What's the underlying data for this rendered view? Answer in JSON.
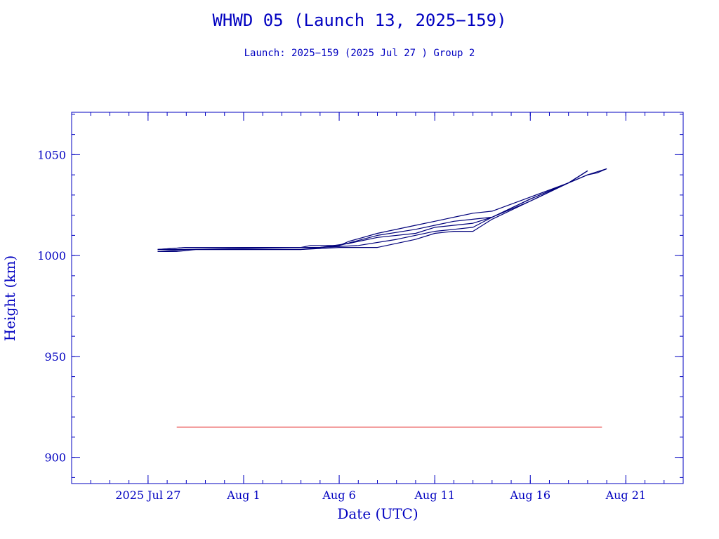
{
  "chart_data": {
    "type": "line",
    "title": "WHWD 05 (Launch 13, 2025−159)",
    "subtitle": "Launch: 2025−159  (2025 Jul 27 )  Group 2",
    "xlabel": "Date (UTC)",
    "ylabel": "Height (km)",
    "x_ticks": [
      {
        "date": "2025-07-27",
        "label": "2025 Jul 27"
      },
      {
        "date": "2025-08-01",
        "label": "Aug  1"
      },
      {
        "date": "2025-08-06",
        "label": "Aug  6"
      },
      {
        "date": "2025-08-11",
        "label": "Aug 11"
      },
      {
        "date": "2025-08-16",
        "label": "Aug 16"
      },
      {
        "date": "2025-08-21",
        "label": "Aug 21"
      }
    ],
    "xlim": [
      "2025-07-23",
      "2025-08-24"
    ],
    "ylim": [
      887,
      1071
    ],
    "y_ticks": [
      900,
      950,
      1000,
      1050
    ],
    "grid": false,
    "line_color": "#00007a",
    "reference_color": "#e00000",
    "axis_color": "#0000c0",
    "series": [
      {
        "points": [
          [
            "2025-07-27T12:00",
            1002
          ],
          [
            "2025-07-28T12:00",
            1002
          ],
          [
            "2025-07-29T12:00",
            1003
          ],
          [
            "2025-08-04",
            1003
          ],
          [
            "2025-08-06",
            1004
          ],
          [
            "2025-08-08",
            1004
          ],
          [
            "2025-08-10",
            1008
          ],
          [
            "2025-08-11",
            1011
          ],
          [
            "2025-08-12",
            1012
          ],
          [
            "2025-08-13",
            1012
          ],
          [
            "2025-08-14",
            1018
          ],
          [
            "2025-08-16",
            1027
          ],
          [
            "2025-08-18",
            1036
          ],
          [
            "2025-08-19",
            1042
          ]
        ]
      },
      {
        "points": [
          [
            "2025-07-27T12:00",
            1002
          ],
          [
            "2025-07-29",
            1003
          ],
          [
            "2025-08-04",
            1003
          ],
          [
            "2025-08-05",
            1004
          ],
          [
            "2025-08-07",
            1005
          ],
          [
            "2025-08-09",
            1008
          ],
          [
            "2025-08-11",
            1012
          ],
          [
            "2025-08-12",
            1013
          ],
          [
            "2025-08-13",
            1014
          ],
          [
            "2025-08-14",
            1019
          ],
          [
            "2025-08-16",
            1027
          ],
          [
            "2025-08-18",
            1036
          ],
          [
            "2025-08-19",
            1042
          ]
        ]
      },
      {
        "points": [
          [
            "2025-07-27T12:00",
            1003
          ],
          [
            "2025-07-29",
            1003
          ],
          [
            "2025-08-04",
            1004
          ],
          [
            "2025-08-05",
            1004
          ],
          [
            "2025-08-06T12:00",
            1006
          ],
          [
            "2025-08-08",
            1009
          ],
          [
            "2025-08-10",
            1011
          ],
          [
            "2025-08-11",
            1014
          ],
          [
            "2025-08-12",
            1015
          ],
          [
            "2025-08-13",
            1016
          ],
          [
            "2025-08-14",
            1019
          ],
          [
            "2025-08-16",
            1028
          ],
          [
            "2025-08-18",
            1036
          ],
          [
            "2025-08-19",
            1042
          ]
        ]
      },
      {
        "points": [
          [
            "2025-07-27T12:00",
            1003
          ],
          [
            "2025-07-29",
            1004
          ],
          [
            "2025-08-04",
            1004
          ],
          [
            "2025-08-05",
            1004
          ],
          [
            "2025-08-06",
            1005
          ],
          [
            "2025-08-08",
            1010
          ],
          [
            "2025-08-10",
            1013
          ],
          [
            "2025-08-11",
            1015
          ],
          [
            "2025-08-12",
            1017
          ],
          [
            "2025-08-13",
            1018
          ],
          [
            "2025-08-14",
            1019
          ],
          [
            "2025-08-16",
            1028
          ],
          [
            "2025-08-18",
            1036
          ],
          [
            "2025-08-19",
            1040
          ],
          [
            "2025-08-20",
            1043
          ]
        ]
      },
      {
        "points": [
          [
            "2025-07-27T12:00",
            1003
          ],
          [
            "2025-07-29",
            1004
          ],
          [
            "2025-08-04",
            1004
          ],
          [
            "2025-08-04T12:00",
            1005
          ],
          [
            "2025-08-06",
            1005
          ],
          [
            "2025-08-06T12:00",
            1007
          ],
          [
            "2025-08-08",
            1011
          ],
          [
            "2025-08-10",
            1015
          ],
          [
            "2025-08-11",
            1017
          ],
          [
            "2025-08-12",
            1019
          ],
          [
            "2025-08-13",
            1021
          ],
          [
            "2025-08-14",
            1022
          ],
          [
            "2025-08-16",
            1029
          ],
          [
            "2025-08-18",
            1036
          ],
          [
            "2025-08-19",
            1040
          ],
          [
            "2025-08-19T12:00",
            1041
          ],
          [
            "2025-08-20",
            1043
          ]
        ]
      }
    ],
    "reference_line": {
      "y": 915,
      "x": [
        "2025-07-28T12:00",
        "2025-08-19T18:00"
      ]
    }
  }
}
